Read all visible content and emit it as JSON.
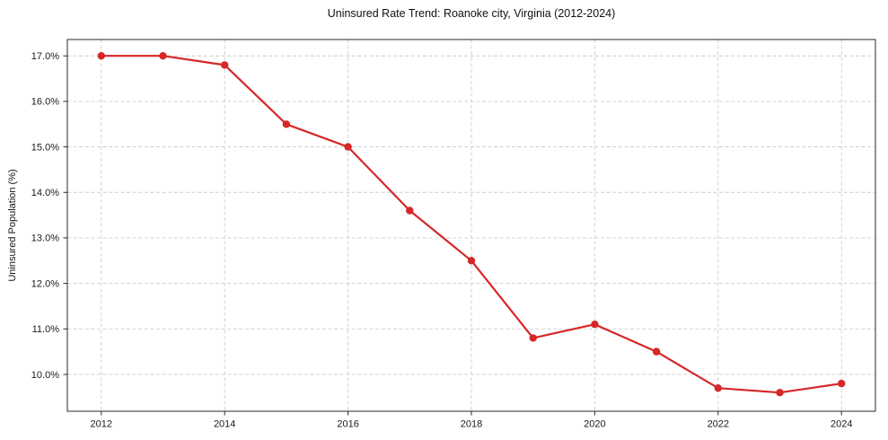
{
  "title": "Uninsured Rate Trend: Roanoke city, Virginia (2012-2024)",
  "colors": {
    "line": "#d62728",
    "grid": "#cccccc",
    "spine": "#2a2a2a",
    "text": "#1a1a1a",
    "background": "#ffffff"
  },
  "chart_data": {
    "type": "line",
    "title": "Uninsured Rate Trend: Roanoke city, Virginia (2012-2024)",
    "xlabel": "",
    "ylabel": "Uninsured Population (%)",
    "x": [
      2012,
      2013,
      2014,
      2015,
      2016,
      2017,
      2018,
      2019,
      2020,
      2021,
      2022,
      2023,
      2024
    ],
    "values": [
      17.0,
      17.0,
      16.8,
      15.5,
      15.0,
      13.6,
      12.5,
      10.8,
      11.1,
      10.5,
      9.7,
      9.6,
      9.8
    ],
    "xlim": [
      2011.45,
      2024.55
    ],
    "ylim": [
      9.19,
      17.36
    ],
    "x_ticks": [
      2012,
      2014,
      2016,
      2018,
      2020,
      2022,
      2024
    ],
    "x_tick_labels": [
      "2012",
      "2014",
      "2016",
      "2018",
      "2020",
      "2022",
      "2024"
    ],
    "y_ticks": [
      10.0,
      11.0,
      12.0,
      13.0,
      14.0,
      15.0,
      16.0,
      17.0
    ],
    "y_tick_labels": [
      "10.0%",
      "11.0%",
      "12.0%",
      "13.0%",
      "14.0%",
      "15.0%",
      "16.0%",
      "17.0%"
    ],
    "grid": true,
    "legend": false,
    "marker": "circle"
  }
}
